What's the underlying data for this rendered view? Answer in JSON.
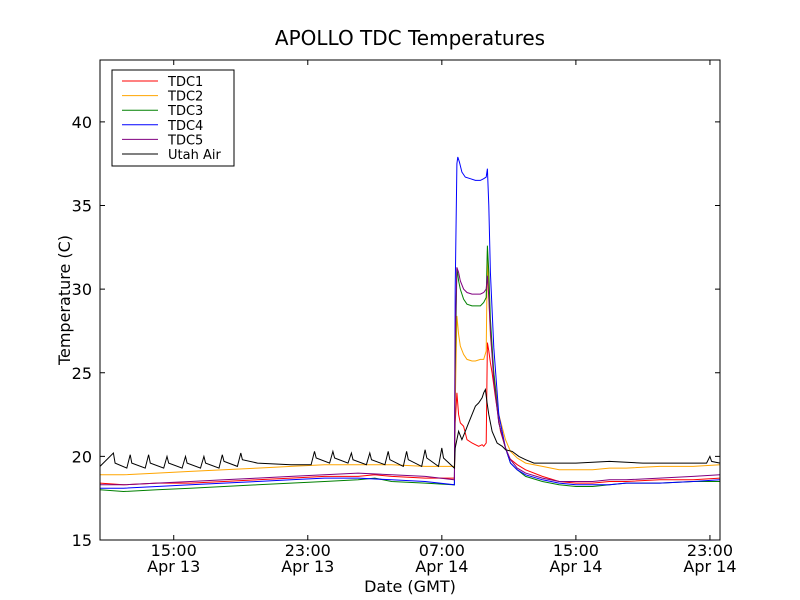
{
  "chart_data": {
    "type": "line",
    "title": "APOLLO TDC Temperatures",
    "xlabel": "Date (GMT)",
    "ylabel": "Temperature (C)",
    "xlim": [
      10.6,
      47.6
    ],
    "ylim": [
      15,
      43.7
    ],
    "x_unit": "hours since Apr 13 00:00 GMT",
    "yticks": [
      15,
      20,
      25,
      30,
      35,
      40
    ],
    "xticks": [
      {
        "value": 15,
        "time": "15:00",
        "date": "Apr 13"
      },
      {
        "value": 23,
        "time": "23:00",
        "date": "Apr 13"
      },
      {
        "value": 31,
        "time": "07:00",
        "date": "Apr 14"
      },
      {
        "value": 39,
        "time": "15:00",
        "date": "Apr 14"
      },
      {
        "value": 47,
        "time": "23:00",
        "date": "Apr 14"
      }
    ],
    "legend_position": "top-left",
    "series": [
      {
        "name": "TDC1",
        "color": "#ff0000",
        "points": [
          [
            10.6,
            18.4
          ],
          [
            12,
            18.3
          ],
          [
            14,
            18.4
          ],
          [
            16,
            18.4
          ],
          [
            18,
            18.5
          ],
          [
            20,
            18.6
          ],
          [
            22,
            18.7
          ],
          [
            24,
            18.8
          ],
          [
            26,
            18.8
          ],
          [
            27,
            18.9
          ],
          [
            28,
            18.8
          ],
          [
            30,
            18.7
          ],
          [
            31.75,
            18.7
          ],
          [
            31.8,
            22.0
          ],
          [
            31.9,
            23.8
          ],
          [
            32.0,
            22.5
          ],
          [
            32.1,
            22.0
          ],
          [
            32.3,
            21.8
          ],
          [
            32.5,
            21.0
          ],
          [
            32.8,
            20.8
          ],
          [
            33.0,
            20.7
          ],
          [
            33.2,
            20.6
          ],
          [
            33.4,
            20.7
          ],
          [
            33.5,
            20.6
          ],
          [
            33.65,
            20.8
          ],
          [
            33.72,
            26.8
          ],
          [
            33.8,
            26.3
          ],
          [
            33.9,
            25.6
          ],
          [
            34.0,
            25.0
          ],
          [
            34.2,
            23.5
          ],
          [
            34.5,
            21.5
          ],
          [
            34.8,
            20.5
          ],
          [
            35.0,
            19.9
          ],
          [
            35.5,
            19.5
          ],
          [
            36,
            19.2
          ],
          [
            37,
            18.8
          ],
          [
            38,
            18.5
          ],
          [
            39,
            18.4
          ],
          [
            40,
            18.4
          ],
          [
            41,
            18.5
          ],
          [
            42,
            18.5
          ],
          [
            44,
            18.6
          ],
          [
            46,
            18.6
          ],
          [
            47.6,
            18.7
          ]
        ]
      },
      {
        "name": "TDC2",
        "color": "#ffa500",
        "points": [
          [
            10.6,
            18.9
          ],
          [
            12,
            18.9
          ],
          [
            14,
            19.0
          ],
          [
            16,
            19.1
          ],
          [
            18,
            19.2
          ],
          [
            20,
            19.3
          ],
          [
            22,
            19.4
          ],
          [
            24,
            19.5
          ],
          [
            26,
            19.5
          ],
          [
            28,
            19.5
          ],
          [
            30,
            19.4
          ],
          [
            31.75,
            19.4
          ],
          [
            31.8,
            23.0
          ],
          [
            31.9,
            28.4
          ],
          [
            32.0,
            27.3
          ],
          [
            32.1,
            26.6
          ],
          [
            32.3,
            26.1
          ],
          [
            32.5,
            25.8
          ],
          [
            32.8,
            25.7
          ],
          [
            33.0,
            25.7
          ],
          [
            33.3,
            25.8
          ],
          [
            33.5,
            25.8
          ],
          [
            33.65,
            26.3
          ],
          [
            33.72,
            32.3
          ],
          [
            33.8,
            29.5
          ],
          [
            33.9,
            27.2
          ],
          [
            34.1,
            25.0
          ],
          [
            34.4,
            22.5
          ],
          [
            34.8,
            21.0
          ],
          [
            35.1,
            20.3
          ],
          [
            35.5,
            19.9
          ],
          [
            36,
            19.6
          ],
          [
            37,
            19.4
          ],
          [
            38,
            19.2
          ],
          [
            39,
            19.2
          ],
          [
            40,
            19.2
          ],
          [
            41,
            19.3
          ],
          [
            42,
            19.3
          ],
          [
            44,
            19.4
          ],
          [
            46,
            19.4
          ],
          [
            47.6,
            19.5
          ]
        ]
      },
      {
        "name": "TDC3",
        "color": "#008000",
        "points": [
          [
            10.6,
            18.0
          ],
          [
            12,
            17.9
          ],
          [
            14,
            18.0
          ],
          [
            16,
            18.1
          ],
          [
            18,
            18.2
          ],
          [
            20,
            18.3
          ],
          [
            22,
            18.4
          ],
          [
            24,
            18.5
          ],
          [
            26,
            18.6
          ],
          [
            27,
            18.7
          ],
          [
            28,
            18.5
          ],
          [
            30,
            18.4
          ],
          [
            31.75,
            18.3
          ],
          [
            31.8,
            25.0
          ],
          [
            31.9,
            31.3
          ],
          [
            32.0,
            30.5
          ],
          [
            32.1,
            30.0
          ],
          [
            32.3,
            29.4
          ],
          [
            32.5,
            29.1
          ],
          [
            32.8,
            29.0
          ],
          [
            33.0,
            29.0
          ],
          [
            33.3,
            29.0
          ],
          [
            33.5,
            29.2
          ],
          [
            33.65,
            29.5
          ],
          [
            33.72,
            32.6
          ],
          [
            33.8,
            31.0
          ],
          [
            33.9,
            28.2
          ],
          [
            34.1,
            25.0
          ],
          [
            34.4,
            22.0
          ],
          [
            34.8,
            20.5
          ],
          [
            35.1,
            19.6
          ],
          [
            35.5,
            19.2
          ],
          [
            36,
            18.8
          ],
          [
            37,
            18.5
          ],
          [
            38,
            18.3
          ],
          [
            39,
            18.2
          ],
          [
            40,
            18.2
          ],
          [
            41,
            18.3
          ],
          [
            42,
            18.4
          ],
          [
            44,
            18.4
          ],
          [
            46,
            18.5
          ],
          [
            47.6,
            18.5
          ]
        ]
      },
      {
        "name": "TDC4",
        "color": "#0000ff",
        "points": [
          [
            10.6,
            18.1
          ],
          [
            12,
            18.1
          ],
          [
            14,
            18.2
          ],
          [
            16,
            18.3
          ],
          [
            18,
            18.4
          ],
          [
            20,
            18.5
          ],
          [
            22,
            18.6
          ],
          [
            24,
            18.7
          ],
          [
            26,
            18.7
          ],
          [
            28,
            18.6
          ],
          [
            30,
            18.5
          ],
          [
            31.75,
            18.3
          ],
          [
            31.8,
            30.0
          ],
          [
            31.9,
            37.5
          ],
          [
            31.95,
            37.9
          ],
          [
            32.05,
            37.6
          ],
          [
            32.2,
            37.0
          ],
          [
            32.4,
            36.7
          ],
          [
            32.7,
            36.6
          ],
          [
            33.0,
            36.5
          ],
          [
            33.3,
            36.5
          ],
          [
            33.5,
            36.6
          ],
          [
            33.65,
            36.7
          ],
          [
            33.72,
            37.2
          ],
          [
            33.8,
            35.0
          ],
          [
            33.9,
            31.0
          ],
          [
            34.1,
            26.5
          ],
          [
            34.4,
            22.5
          ],
          [
            34.8,
            20.5
          ],
          [
            35.1,
            19.6
          ],
          [
            35.5,
            19.2
          ],
          [
            36,
            18.9
          ],
          [
            37,
            18.6
          ],
          [
            38,
            18.4
          ],
          [
            39,
            18.3
          ],
          [
            40,
            18.3
          ],
          [
            41,
            18.3
          ],
          [
            42,
            18.4
          ],
          [
            44,
            18.4
          ],
          [
            46,
            18.5
          ],
          [
            47.6,
            18.6
          ]
        ]
      },
      {
        "name": "TDC5",
        "color": "#800080",
        "points": [
          [
            10.6,
            18.3
          ],
          [
            12,
            18.3
          ],
          [
            14,
            18.4
          ],
          [
            16,
            18.5
          ],
          [
            18,
            18.6
          ],
          [
            20,
            18.7
          ],
          [
            22,
            18.8
          ],
          [
            24,
            18.9
          ],
          [
            26,
            19.0
          ],
          [
            28,
            18.9
          ],
          [
            30,
            18.8
          ],
          [
            31.75,
            18.6
          ],
          [
            31.8,
            27.0
          ],
          [
            31.9,
            31.3
          ],
          [
            32.0,
            31.0
          ],
          [
            32.1,
            30.5
          ],
          [
            32.3,
            30.0
          ],
          [
            32.5,
            29.8
          ],
          [
            32.8,
            29.7
          ],
          [
            33.0,
            29.7
          ],
          [
            33.3,
            29.7
          ],
          [
            33.5,
            29.8
          ],
          [
            33.65,
            30.0
          ],
          [
            33.72,
            30.8
          ],
          [
            33.8,
            29.5
          ],
          [
            33.9,
            27.5
          ],
          [
            34.1,
            24.5
          ],
          [
            34.4,
            22.0
          ],
          [
            34.8,
            20.5
          ],
          [
            35.1,
            19.8
          ],
          [
            35.5,
            19.3
          ],
          [
            36,
            19.0
          ],
          [
            37,
            18.7
          ],
          [
            38,
            18.5
          ],
          [
            39,
            18.5
          ],
          [
            40,
            18.5
          ],
          [
            41,
            18.6
          ],
          [
            42,
            18.6
          ],
          [
            44,
            18.7
          ],
          [
            46,
            18.8
          ],
          [
            47.6,
            18.9
          ]
        ]
      },
      {
        "name": "Utah Air",
        "color": "#000000",
        "points": [
          [
            10.6,
            19.4
          ],
          [
            11.4,
            20.2
          ],
          [
            11.5,
            19.6
          ],
          [
            12.2,
            19.3
          ],
          [
            12.4,
            20.1
          ],
          [
            12.5,
            19.6
          ],
          [
            13.3,
            19.3
          ],
          [
            13.5,
            20.1
          ],
          [
            13.6,
            19.6
          ],
          [
            14.4,
            19.3
          ],
          [
            14.6,
            20.0
          ],
          [
            14.7,
            19.6
          ],
          [
            15.5,
            19.3
          ],
          [
            15.7,
            20.0
          ],
          [
            15.8,
            19.6
          ],
          [
            16.6,
            19.3
          ],
          [
            16.8,
            20.0
          ],
          [
            16.9,
            19.6
          ],
          [
            17.7,
            19.3
          ],
          [
            17.9,
            20.1
          ],
          [
            18.0,
            19.7
          ],
          [
            18.8,
            19.4
          ],
          [
            19.0,
            20.2
          ],
          [
            19.1,
            19.8
          ],
          [
            20,
            19.6
          ],
          [
            22,
            19.5
          ],
          [
            23.2,
            19.5
          ],
          [
            23.4,
            20.3
          ],
          [
            23.5,
            19.9
          ],
          [
            24.3,
            19.6
          ],
          [
            24.5,
            20.3
          ],
          [
            24.6,
            19.9
          ],
          [
            25.4,
            19.6
          ],
          [
            25.6,
            20.2
          ],
          [
            25.7,
            19.8
          ],
          [
            26.5,
            19.5
          ],
          [
            26.7,
            20.2
          ],
          [
            26.8,
            19.8
          ],
          [
            27.6,
            19.5
          ],
          [
            27.8,
            20.3
          ],
          [
            27.9,
            19.8
          ],
          [
            28.7,
            19.4
          ],
          [
            28.9,
            20.3
          ],
          [
            29.0,
            19.8
          ],
          [
            29.8,
            19.4
          ],
          [
            30.0,
            20.4
          ],
          [
            30.1,
            19.9
          ],
          [
            30.8,
            19.4
          ],
          [
            31.0,
            20.5
          ],
          [
            31.1,
            19.9
          ],
          [
            31.75,
            19.3
          ],
          [
            31.8,
            20.5
          ],
          [
            32.0,
            21.5
          ],
          [
            32.2,
            21.0
          ],
          [
            32.4,
            21.5
          ],
          [
            32.6,
            22.0
          ],
          [
            32.8,
            22.5
          ],
          [
            33.0,
            23.0
          ],
          [
            33.2,
            23.2
          ],
          [
            33.4,
            23.5
          ],
          [
            33.5,
            23.8
          ],
          [
            33.6,
            24.0
          ],
          [
            33.7,
            23.2
          ],
          [
            33.8,
            22.5
          ],
          [
            34.0,
            21.5
          ],
          [
            34.3,
            20.8
          ],
          [
            34.6,
            20.6
          ],
          [
            34.8,
            20.4
          ],
          [
            35.2,
            20.3
          ],
          [
            35.6,
            20.0
          ],
          [
            36.0,
            19.8
          ],
          [
            36.5,
            19.6
          ],
          [
            37,
            19.6
          ],
          [
            39,
            19.6
          ],
          [
            41,
            19.7
          ],
          [
            43,
            19.6
          ],
          [
            45,
            19.6
          ],
          [
            46.8,
            19.6
          ],
          [
            47.0,
            20.0
          ],
          [
            47.1,
            19.7
          ],
          [
            47.6,
            19.6
          ]
        ]
      }
    ]
  }
}
